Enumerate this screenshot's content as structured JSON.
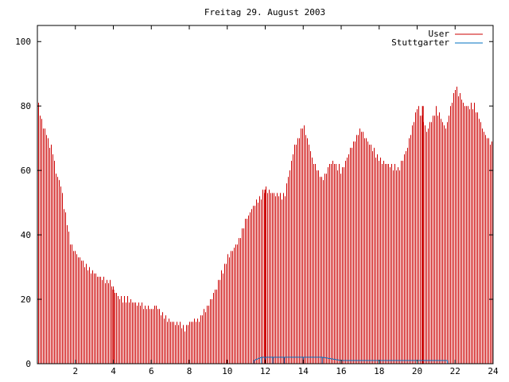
{
  "chart_data": {
    "type": "bar",
    "title": "Freitag 29. August 2003",
    "xlabel": "",
    "ylabel": "",
    "xlim": [
      0,
      24
    ],
    "ylim": [
      0,
      105
    ],
    "x_ticks": [
      2,
      4,
      6,
      8,
      10,
      12,
      14,
      16,
      18,
      20,
      22,
      24
    ],
    "y_ticks": [
      0,
      20,
      40,
      60,
      80,
      100
    ],
    "grid": false,
    "legend_position": "top-right",
    "series": [
      {
        "name": "User",
        "color": "#cc0000",
        "anchors": [
          [
            0.0,
            83
          ],
          [
            0.1,
            78
          ],
          [
            0.3,
            73
          ],
          [
            0.5,
            71
          ],
          [
            0.6,
            68
          ],
          [
            0.8,
            66
          ],
          [
            1.0,
            58
          ],
          [
            1.2,
            56
          ],
          [
            1.4,
            48
          ],
          [
            1.6,
            42
          ],
          [
            1.7,
            38
          ],
          [
            1.9,
            35
          ],
          [
            2.2,
            33
          ],
          [
            2.5,
            30
          ],
          [
            3.0,
            28
          ],
          [
            3.5,
            26
          ],
          [
            3.9,
            25
          ],
          [
            4.0,
            23
          ],
          [
            4.3,
            20
          ],
          [
            4.8,
            20
          ],
          [
            5.0,
            19
          ],
          [
            5.5,
            18
          ],
          [
            6.0,
            17
          ],
          [
            6.3,
            18
          ],
          [
            6.5,
            16
          ],
          [
            7.0,
            13
          ],
          [
            7.5,
            12
          ],
          [
            7.8,
            11
          ],
          [
            8.0,
            13
          ],
          [
            8.5,
            14
          ],
          [
            9.0,
            18
          ],
          [
            9.5,
            25
          ],
          [
            10.0,
            33
          ],
          [
            10.5,
            37
          ],
          [
            11.0,
            45
          ],
          [
            11.5,
            50
          ],
          [
            12.0,
            54
          ],
          [
            12.5,
            53
          ],
          [
            13.0,
            52
          ],
          [
            13.5,
            67
          ],
          [
            14.0,
            74
          ],
          [
            14.5,
            63
          ],
          [
            15.0,
            57
          ],
          [
            15.5,
            63
          ],
          [
            16.0,
            60
          ],
          [
            16.5,
            67
          ],
          [
            17.0,
            73
          ],
          [
            17.5,
            68
          ],
          [
            18.0,
            63
          ],
          [
            18.5,
            62
          ],
          [
            19.0,
            60
          ],
          [
            19.5,
            68
          ],
          [
            20.0,
            80
          ],
          [
            20.5,
            72
          ],
          [
            21.0,
            79
          ],
          [
            21.5,
            73
          ],
          [
            22.0,
            86
          ],
          [
            22.5,
            80
          ],
          [
            23.0,
            80
          ],
          [
            23.5,
            72
          ],
          [
            24.0,
            67
          ]
        ],
        "spikes": [
          [
            4.0,
            23
          ],
          [
            12.0,
            54
          ],
          [
            20.3,
            80
          ]
        ]
      },
      {
        "name": "Stuttgarter",
        "color": "#0070c0",
        "anchors": [
          [
            11.4,
            1
          ],
          [
            11.8,
            2
          ],
          [
            12.0,
            2
          ],
          [
            12.4,
            2
          ],
          [
            13.0,
            2
          ],
          [
            14.0,
            2
          ],
          [
            15.0,
            2
          ],
          [
            16.0,
            1
          ],
          [
            18.0,
            1
          ],
          [
            21.6,
            1
          ]
        ]
      }
    ]
  }
}
